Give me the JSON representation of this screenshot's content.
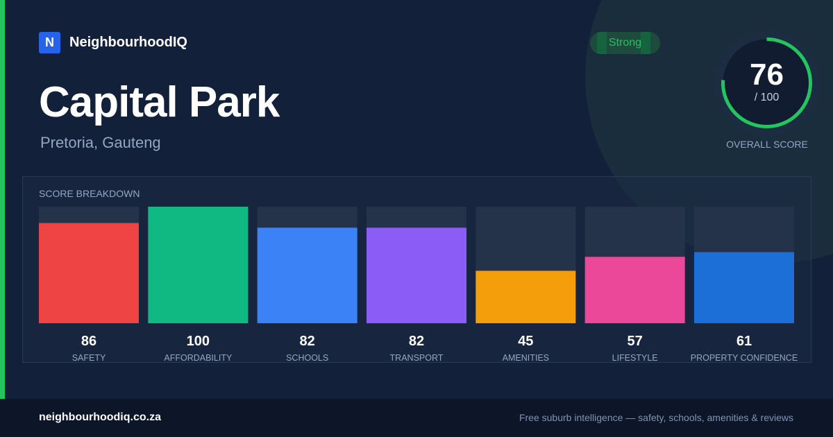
{
  "brand": {
    "logo_letter": "N",
    "name": "NeighbourhoodIQ"
  },
  "suburb": {
    "name": "Capital Park",
    "location": "Pretoria, Gauteng"
  },
  "badge": "Strong",
  "overall": {
    "score": "76",
    "max_label": "/ 100",
    "label": "OVERALL SCORE",
    "value": 76,
    "max": 100,
    "ring_color": "#22c55e"
  },
  "breakdown_title": "SCORE BREAKDOWN",
  "chart_data": {
    "type": "bar",
    "title": "SCORE BREAKDOWN",
    "categories": [
      "SAFETY",
      "AFFORDABILITY",
      "SCHOOLS",
      "TRANSPORT",
      "AMENITIES",
      "LIFESTYLE",
      "PROPERTY CONFIDENCE"
    ],
    "values": [
      86,
      100,
      82,
      82,
      45,
      57,
      61
    ],
    "colors": [
      "#ef4444",
      "#10b981",
      "#3b82f6",
      "#8b5cf6",
      "#f59e0b",
      "#ec4899",
      "#1d6fd8"
    ],
    "ylim": [
      0,
      100
    ],
    "grid": false,
    "legend": "none"
  },
  "footer": {
    "url": "neighbourhoodiq.co.za",
    "tagline": "Free suburb intelligence — safety, schools, amenities & reviews"
  }
}
